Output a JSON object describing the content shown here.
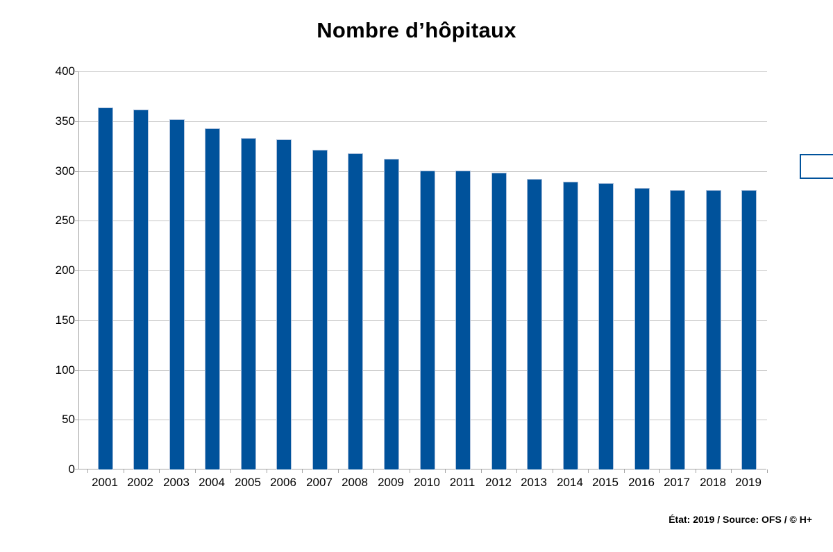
{
  "page": {
    "title": "Nombre d’hôpitaux",
    "source_note": "État: 2019 / Source: OFS / © H+"
  },
  "chart_data": {
    "type": "bar",
    "title": "Nombre d’hôpitaux",
    "categories": [
      "2001",
      "2002",
      "2003",
      "2004",
      "2005",
      "2006",
      "2007",
      "2008",
      "2009",
      "2010",
      "2011",
      "2012",
      "2013",
      "2014",
      "2015",
      "2016",
      "2017",
      "2018",
      "2019"
    ],
    "values": [
      364,
      362,
      352,
      343,
      333,
      332,
      321,
      318,
      312,
      300,
      300,
      298,
      292,
      289,
      288,
      283,
      281,
      281,
      281
    ],
    "xlabel": "",
    "ylabel": "",
    "ylim": [
      0,
      400
    ],
    "ytick_interval": 50,
    "yticks": [
      0,
      50,
      100,
      150,
      200,
      250,
      300,
      350,
      400
    ],
    "grid": true,
    "legend": {
      "visible": true,
      "label": "",
      "position": "right"
    },
    "colors": {
      "bar_fill": "#00529B",
      "bar_border": "#AEC1DC",
      "gridline": "#C3C3C3",
      "axis": "#A3A3A3",
      "text": "#000000",
      "legend_border": "#00529B"
    },
    "source_note": "État: 2019 / Source: OFS / © H+"
  }
}
